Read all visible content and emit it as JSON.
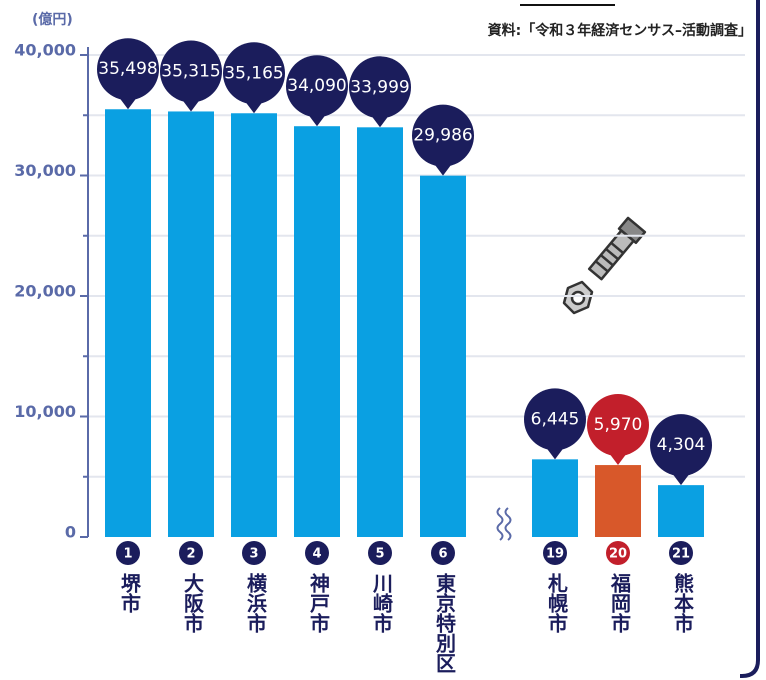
{
  "chart_data": {
    "type": "bar",
    "unit_label": "(億円)",
    "source": "資料:「令和３年経済センサス–活動調査」",
    "categories": [
      "堺市",
      "大阪市",
      "横浜市",
      "神戸市",
      "川崎市",
      "東京特別区",
      "札幌市",
      "福岡市",
      "熊本市"
    ],
    "ranks": [
      1,
      2,
      3,
      4,
      5,
      6,
      19,
      20,
      21
    ],
    "values": [
      35498,
      35315,
      35165,
      34090,
      33999,
      29986,
      6445,
      5970,
      4304
    ],
    "value_labels": [
      "35,498",
      "35,315",
      "35,165",
      "34,090",
      "33,999",
      "29,986",
      "6,445",
      "5,970",
      "4,304"
    ],
    "colors": [
      "#0aa0e2",
      "#0aa0e2",
      "#0aa0e2",
      "#0aa0e2",
      "#0aa0e2",
      "#0aa0e2",
      "#0aa0e2",
      "#d8582a",
      "#0aa0e2"
    ],
    "label_colors": [
      "#1b1d5c",
      "#1b1d5c",
      "#1b1d5c",
      "#1b1d5c",
      "#1b1d5c",
      "#1b1d5c",
      "#1b1d5c",
      "#c21f2b",
      "#1b1d5c"
    ],
    "ylim": [
      0,
      40000
    ],
    "yticks": [
      {
        "value": 0,
        "label": "0"
      },
      {
        "value": 10000,
        "label": "10,000"
      },
      {
        "value": 20000,
        "label": "20,000"
      },
      {
        "value": 30000,
        "label": "30,000"
      },
      {
        "value": 40000,
        "label": "40,000"
      }
    ],
    "minor_yticks": [
      5000,
      15000,
      25000,
      35000
    ],
    "grid": true
  }
}
